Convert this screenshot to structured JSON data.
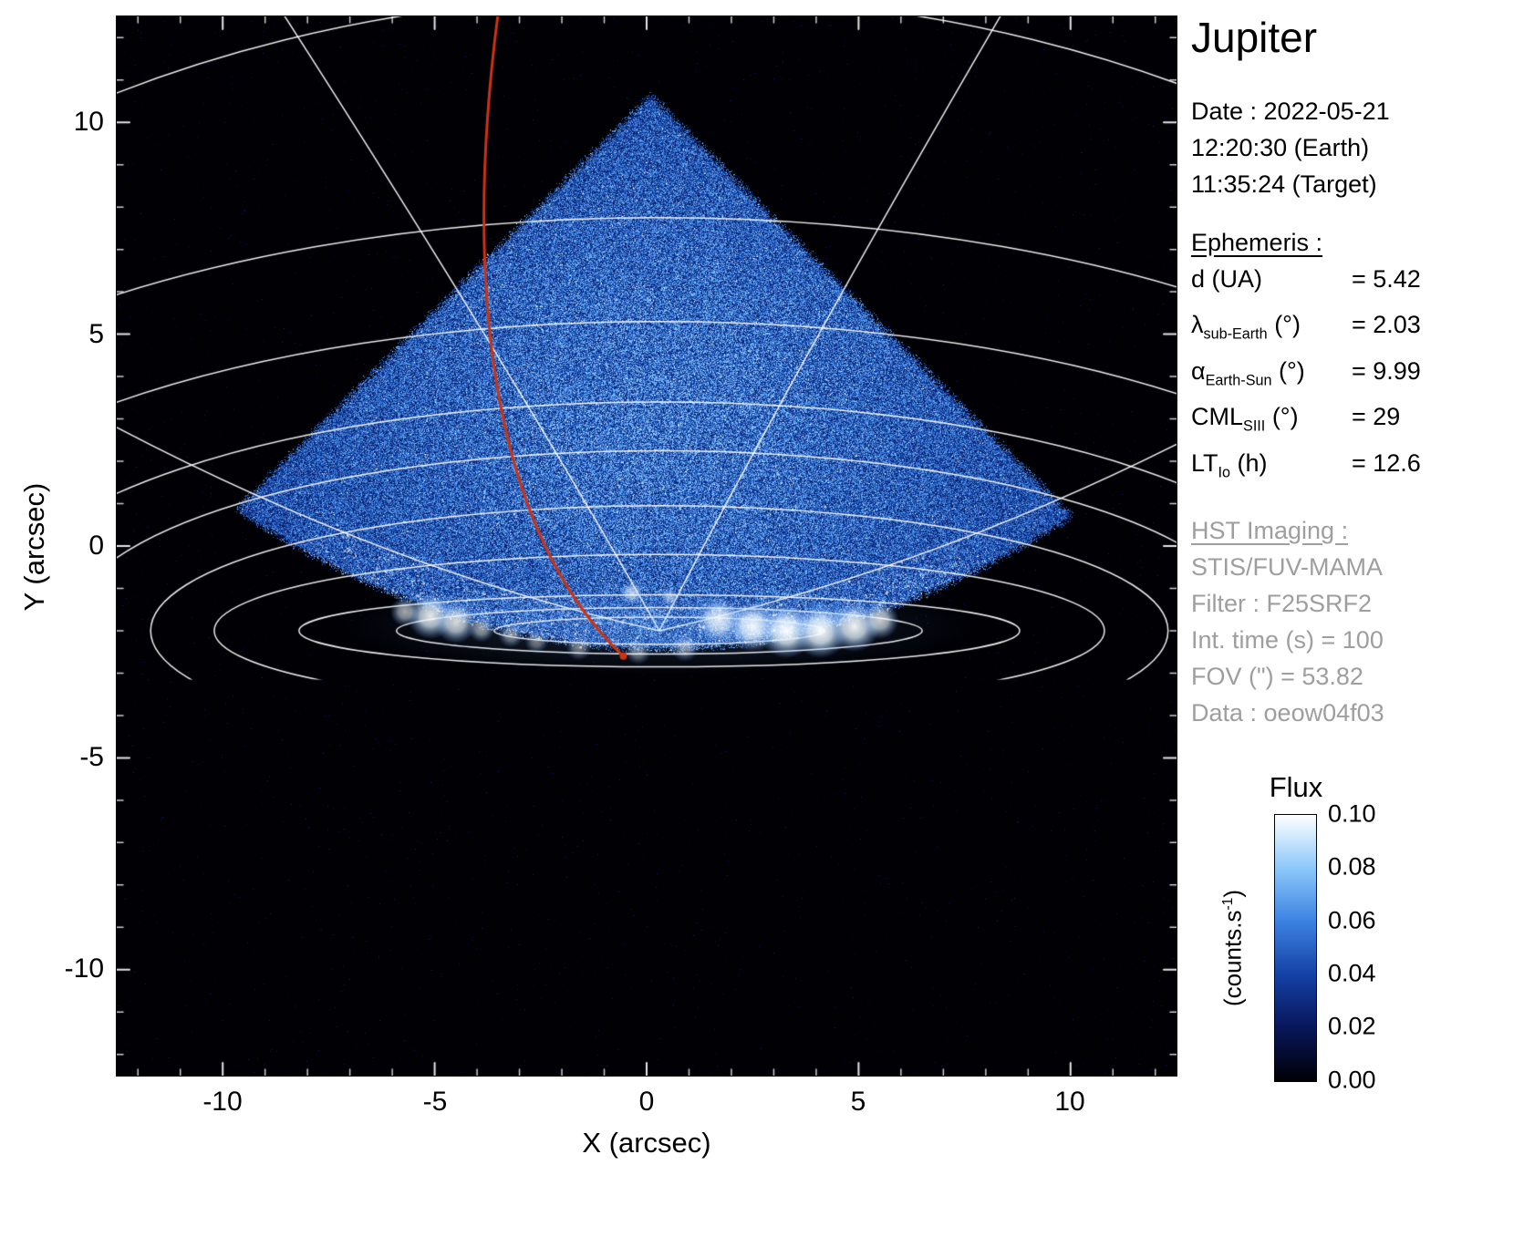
{
  "title": "Jupiter",
  "observation": {
    "date_label": "Date : 2022-05-21",
    "earth_time": "12:20:30 (Earth)",
    "target_time": "11:35:24 (Target)"
  },
  "ephemeris": {
    "heading": "Ephemeris :",
    "rows": [
      {
        "pre": "d",
        "sub": "",
        "mid": " (UA)",
        "post": "= 5.42"
      },
      {
        "pre": "λ",
        "sub": "sub-Earth",
        "mid": " (°)",
        "post": "= 2.03"
      },
      {
        "pre": "α",
        "sub": "Earth-Sun",
        "mid": " (°)",
        "post": "= 9.99"
      },
      {
        "pre": "CML",
        "sub": "SIII",
        "mid": " (°)",
        "post": "= 29"
      },
      {
        "pre": "LT",
        "sub": "Io",
        "mid": " (h)",
        "post": "= 12.6"
      }
    ]
  },
  "hst": {
    "heading": "HST Imaging :",
    "lines": [
      "STIS/FUV-MAMA",
      "Filter : F25SRF2",
      "Int. time (s) = 100",
      "FOV (\") = 53.82",
      "Data : oeow04f03"
    ]
  },
  "axes": {
    "x_label": "X (arcsec)",
    "y_label": "Y (arcsec)",
    "x_tick_labels": [
      "-10",
      "-5",
      "0",
      "5",
      "10"
    ],
    "y_tick_labels": [
      "10",
      "5",
      "0",
      "-5",
      "-10"
    ]
  },
  "colorbar": {
    "title": "Flux",
    "unit_prefix": "(counts.s",
    "unit_sup": "-1",
    "unit_suffix": ")",
    "ticks": [
      "0.10",
      "0.08",
      "0.06",
      "0.04",
      "0.02",
      "0.00"
    ],
    "stops": [
      "#000005",
      "#08165a",
      "#1441a5",
      "#3c82e1",
      "#8cc8fa",
      "#ffffff"
    ]
  },
  "chart_data": {
    "type": "heatmap",
    "title": "Jupiter",
    "xlabel": "X (arcsec)",
    "ylabel": "Y (arcsec)",
    "xlim": [
      -12.5,
      12.5
    ],
    "ylim": [
      -12.5,
      12.5
    ],
    "x_ticks": [
      -10,
      -5,
      0,
      5,
      10
    ],
    "y_ticks": [
      -10,
      -5,
      0,
      5,
      10
    ],
    "flux_range": [
      0.0,
      0.1
    ],
    "flux_unit": "counts.s-1",
    "description": "HST STIS/FUV-MAMA image of Jupiter: diamond-shaped detector field filled with blue speckle noise, bright white auroral emission arc near y=-2 arcsec, white planetary lat/lon grid curves, red track ending near the auroral region",
    "render": {
      "fov": {
        "apex": [
          0.1,
          10.8
        ],
        "slope": 1.0,
        "bottom": {
          "y0": -2.55,
          "k": 3.3,
          "x0": 0.3,
          "xs": 10
        }
      },
      "noise": {
        "base": 0.016,
        "span": 0.05,
        "sparkle_p": 0.03,
        "sparkle_v": 0.05
      },
      "pole": [
        0.3,
        -2.0
      ],
      "grid_clip_y": -3.15,
      "grid_color": "#ffffff",
      "parallels": [
        [
          24,
          15
        ],
        [
          22,
          9.75
        ],
        [
          19,
          7.3
        ],
        [
          16,
          5.4
        ],
        [
          14,
          4.25
        ],
        [
          12,
          2.95
        ],
        [
          10.5,
          1.8
        ],
        [
          8.5,
          0.85
        ],
        [
          6.2,
          0.55
        ],
        [
          3.9,
          0.32
        ]
      ],
      "meridians": [
        {
          "from": [
            0.3,
            -2.0
          ],
          "ctrl": [
            -6.0,
            -0.6
          ],
          "to": [
            -12.5,
            2.8
          ]
        },
        {
          "from": [
            0.3,
            -2.0
          ],
          "ctrl": [
            6.5,
            -0.6
          ],
          "to": [
            12.5,
            2.4
          ]
        },
        {
          "from": [
            0.3,
            -2.0
          ],
          "ctrl": [
            -3.2,
            4.2
          ],
          "to": [
            -8.6,
            12.6
          ]
        },
        {
          "from": [
            0.3,
            -2.0
          ],
          "ctrl": [
            3.5,
            4.2
          ],
          "to": [
            8.4,
            12.6
          ]
        }
      ],
      "aurora": {
        "haze": {
          "x": 0.3,
          "y": -1.9,
          "rx": 7.6,
          "ry": 1.15,
          "alpha": 0.22
        },
        "blobs": [
          [
            1.7,
            -1.75,
            0.55,
            0.85
          ],
          [
            2.5,
            -1.9,
            0.6,
            0.95
          ],
          [
            3.3,
            -2.0,
            0.65,
            1
          ],
          [
            4.1,
            -2.0,
            0.65,
            1
          ],
          [
            4.9,
            -1.9,
            0.6,
            0.95
          ],
          [
            5.5,
            -1.75,
            0.45,
            0.8
          ],
          [
            -5.1,
            -1.65,
            0.55,
            0.9
          ],
          [
            -4.5,
            -1.8,
            0.5,
            0.85
          ],
          [
            -5.7,
            -1.55,
            0.35,
            0.65
          ],
          [
            -3.9,
            -1.95,
            0.32,
            0.6
          ],
          [
            -0.35,
            -1.1,
            0.28,
            0.7
          ],
          [
            0.55,
            -1.2,
            0.22,
            0.55
          ],
          [
            -2.6,
            -2.25,
            0.28,
            0.45
          ],
          [
            -1.6,
            -2.4,
            0.3,
            0.45
          ],
          [
            -0.2,
            -2.5,
            0.3,
            0.45
          ],
          [
            0.9,
            -2.4,
            0.33,
            0.5
          ],
          [
            -3.2,
            -2.1,
            0.3,
            0.5
          ]
        ],
        "speckles": 700
      },
      "red_curve": {
        "start": [
          -3.5,
          12.6
        ],
        "c1": [
          -4.3,
          6.5
        ],
        "c2": [
          -3.8,
          0.5
        ],
        "end": [
          -0.55,
          -2.6
        ],
        "color": "#cc3311",
        "width": 3
      },
      "colormap": [
        [
          0,
          [
            0,
            0,
            5
          ]
        ],
        [
          0.02,
          [
            8,
            22,
            90
          ]
        ],
        [
          0.04,
          [
            20,
            65,
            165
          ]
        ],
        [
          0.06,
          [
            60,
            130,
            225
          ]
        ],
        [
          0.08,
          [
            140,
            200,
            252
          ]
        ],
        [
          0.1,
          [
            255,
            255,
            255
          ]
        ]
      ]
    }
  }
}
